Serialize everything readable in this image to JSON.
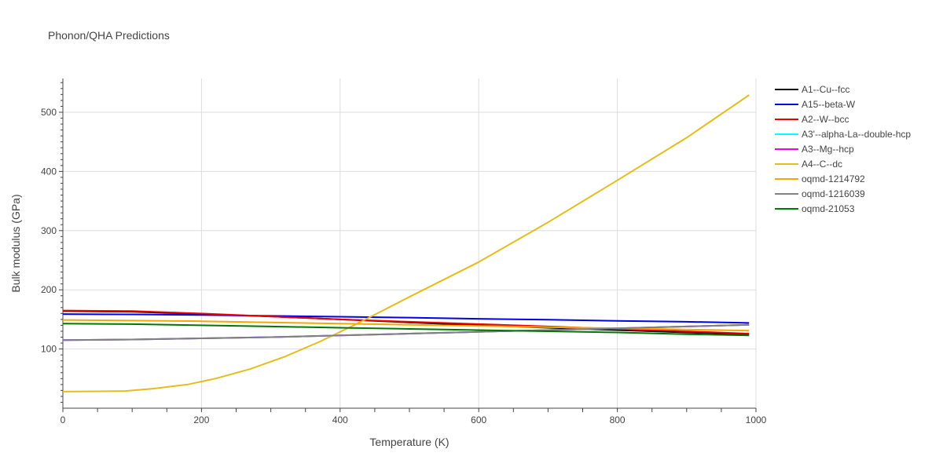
{
  "chart_data": {
    "type": "line",
    "title": "Phonon/QHA Predictions",
    "xlabel": "Temperature (K)",
    "ylabel": "Bulk modulus (GPa)",
    "xlim": [
      0,
      1000
    ],
    "ylim": [
      0,
      557
    ],
    "x_ticks": [
      0,
      200,
      400,
      600,
      800,
      1000
    ],
    "y_ticks": [
      100,
      200,
      300,
      400,
      500
    ],
    "grid": true,
    "legend_position": "right",
    "series": [
      {
        "name": "A1--Cu--fcc",
        "color": "#000000",
        "x": [
          0,
          100,
          200,
          300,
          400,
          500,
          600,
          700,
          800,
          900,
          990
        ],
        "y": [
          164,
          163,
          159,
          155,
          150,
          145,
          140,
          136,
          132,
          128,
          125
        ]
      },
      {
        "name": "A15--beta-W",
        "color": "#0000ee",
        "x": [
          0,
          100,
          200,
          300,
          400,
          500,
          600,
          700,
          800,
          900,
          990
        ],
        "y": [
          159,
          158.5,
          157.5,
          156,
          154.5,
          153,
          151,
          149.5,
          147.5,
          146,
          144
        ]
      },
      {
        "name": "A2--W--bcc",
        "color": "#ee0000",
        "x": [
          0,
          100,
          200,
          300,
          400,
          500,
          600,
          700,
          800,
          900,
          990
        ],
        "y": [
          165,
          164,
          160,
          155,
          150,
          146,
          142,
          138,
          134,
          130,
          126
        ]
      },
      {
        "name": "A3'--alpha-La--double-hcp",
        "color": "#00ffff",
        "x": [
          0,
          100,
          200,
          300,
          400,
          500,
          600,
          700,
          800,
          900,
          990
        ],
        "y": [
          115,
          116,
          118,
          120,
          123,
          126,
          129,
          132,
          135,
          138,
          141
        ]
      },
      {
        "name": "A3--Mg--hcp",
        "color": "#ee00ee",
        "x": [
          0,
          100,
          200,
          300,
          400,
          500,
          600,
          700,
          800,
          900,
          990
        ],
        "y": [
          115,
          116,
          118,
          120,
          123,
          126,
          129,
          132,
          135,
          138,
          141
        ]
      },
      {
        "name": "A4--C--dc",
        "color": "#e3bd1c",
        "x": [
          0,
          50,
          90,
          130,
          180,
          220,
          270,
          320,
          370,
          420,
          500,
          600,
          700,
          800,
          900,
          990
        ],
        "y": [
          28,
          28.5,
          29,
          33,
          40,
          50,
          66,
          87,
          112,
          140,
          188,
          247,
          314,
          385,
          457,
          529
        ]
      },
      {
        "name": "oqmd-1214792",
        "color": "#f5a800",
        "x": [
          0,
          100,
          200,
          300,
          400,
          500,
          600,
          700,
          800,
          900,
          990
        ],
        "y": [
          149,
          148,
          147,
          145,
          143,
          141,
          139,
          137,
          135,
          133,
          131
        ]
      },
      {
        "name": "oqmd-1216039",
        "color": "#808080",
        "x": [
          0,
          100,
          200,
          300,
          400,
          500,
          600,
          700,
          800,
          900,
          990
        ],
        "y": [
          115,
          116,
          118,
          120,
          123,
          126,
          129,
          132,
          135,
          138,
          141
        ]
      },
      {
        "name": "oqmd-21053",
        "color": "#007700",
        "x": [
          0,
          100,
          200,
          300,
          400,
          500,
          600,
          700,
          800,
          900,
          990
        ],
        "y": [
          143,
          142,
          140,
          138,
          136,
          134,
          132,
          130,
          128,
          125,
          123
        ]
      }
    ]
  }
}
